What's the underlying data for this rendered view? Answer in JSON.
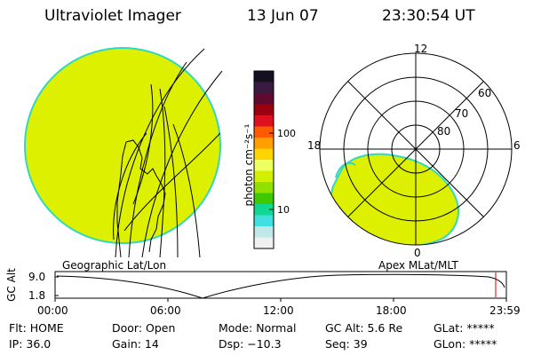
{
  "header": {
    "title": "Ultraviolet Imager",
    "date": "13 Jun 07",
    "time": "23:30:54 UT"
  },
  "colors": {
    "image_fill": "#ddf000",
    "image_edge": "#30d8c0",
    "background": "#ffffff",
    "line": "#000000",
    "marker": "#cc0000"
  },
  "colorbar": {
    "unit_label": "photon cm⁻²s⁻¹",
    "ticks": [
      "100",
      "10"
    ],
    "colors": [
      "#151020",
      "#3a1a40",
      "#600a30",
      "#9a0010",
      "#dd1020",
      "#ff5a00",
      "#ffa000",
      "#ffd400",
      "#f0ff60",
      "#d0f000",
      "#90e000",
      "#40c800",
      "#10d890",
      "#40e0e0",
      "#c0e8e8",
      "#f0f0f0"
    ]
  },
  "left_panel": {
    "label": "Geographic Lat/Lon"
  },
  "right_panel": {
    "label": "Apex MLat/MLT",
    "mlt_labels": [
      "12",
      "18",
      "6",
      "0"
    ],
    "lat_labels": [
      "60",
      "70",
      "80"
    ]
  },
  "altitude_plot": {
    "axis_label": "GC Alt",
    "y_ticks": [
      "9.0",
      "1.8"
    ],
    "x_ticks": [
      "00:00",
      "06:00",
      "12:00",
      "18:00",
      "23:59"
    ]
  },
  "footer": {
    "row1": [
      "Flt: HOME",
      "Door: Open",
      "Mode: Normal",
      "GC Alt: 5.6 Re",
      "GLat: *****"
    ],
    "row2": [
      "IP: 36.0",
      "Gain: 14",
      "Dsp: −10.3",
      "Seq: 39",
      "GLon: *****"
    ]
  }
}
